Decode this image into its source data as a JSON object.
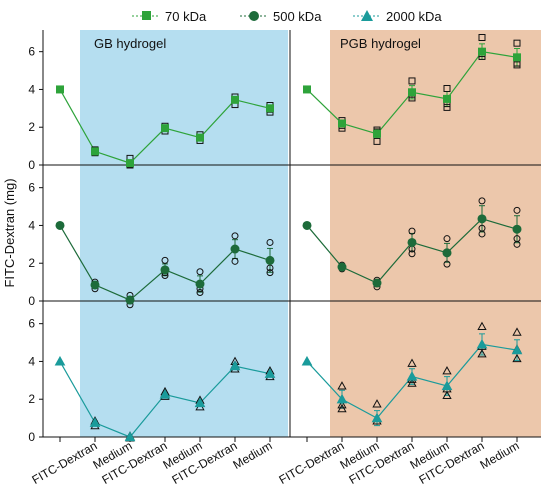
{
  "chart_data": {
    "type": "line",
    "ylabel": "FITC-Dextran (mg)",
    "legend": {
      "placement": "top-center",
      "entries": [
        {
          "label": "70 kDa",
          "marker": "square"
        },
        {
          "label": "500 kDa",
          "marker": "circle"
        },
        {
          "label": "2000 kDa",
          "marker": "triangle"
        }
      ]
    },
    "groups": [
      {
        "label": "GB hydrogel",
        "color": "#b5def0"
      },
      {
        "label": "PGB hydrogel",
        "color": "#ecc7ab"
      }
    ],
    "x_tick_labels": [
      "",
      "FITC-Dextran",
      "Medium",
      "FITC-Dextran",
      "Medium",
      "FITC-Dextran",
      "Medium"
    ],
    "ylim": [
      0,
      7.2
    ],
    "yticks": [
      0,
      2,
      4,
      6
    ],
    "grid": false,
    "panels": [
      {
        "name": "70 kDa",
        "marker": "square",
        "color": "#2ea33a",
        "series": [
          {
            "name": "70 kDa",
            "group": "GB hydrogel",
            "mean": [
              4.0,
              0.72,
              0.1,
              1.95,
              1.45,
              3.45,
              3.0
            ],
            "replicates": [
              [
                4.0
              ],
              [
                0.65,
                0.75,
                0.8
              ],
              [
                0.0,
                0.05,
                0.35
              ],
              [
                1.8,
                1.95,
                2.05
              ],
              [
                1.3,
                1.45,
                1.6
              ],
              [
                3.2,
                3.45,
                3.6
              ],
              [
                2.8,
                2.95,
                3.15
              ]
            ]
          },
          {
            "name": "70 kDa",
            "group": "PGB hydrogel",
            "mean": [
              4.0,
              2.2,
              1.65,
              3.85,
              3.5,
              6.0,
              5.7
            ],
            "replicates": [
              [
                4.0
              ],
              [
                1.95,
                2.1,
                2.35
              ],
              [
                1.25,
                1.75,
                1.85
              ],
              [
                3.55,
                3.75,
                4.45
              ],
              [
                3.05,
                3.25,
                4.05
              ],
              [
                5.75,
                5.9,
                6.75
              ],
              [
                5.3,
                5.4,
                6.45
              ]
            ]
          }
        ]
      },
      {
        "name": "500 kDa",
        "marker": "circle",
        "color": "#1d6b3a",
        "series": [
          {
            "name": "500 kDa",
            "group": "GB hydrogel",
            "mean": [
              4.0,
              0.85,
              0.05,
              1.65,
              0.9,
              2.75,
              2.15
            ],
            "replicates": [
              [
                4.0
              ],
              [
                0.65,
                0.8,
                1.0
              ],
              [
                -0.2,
                0.0,
                0.3
              ],
              [
                1.35,
                1.5,
                2.15
              ],
              [
                0.45,
                0.65,
                1.55
              ],
              [
                2.1,
                2.75,
                3.45
              ],
              [
                1.5,
                1.75,
                3.1
              ]
            ]
          },
          {
            "name": "500 kDa",
            "group": "PGB hydrogel",
            "mean": [
              4.0,
              1.8,
              0.95,
              3.1,
              2.55,
              4.35,
              3.8
            ],
            "replicates": [
              [
                4.0
              ],
              [
                1.7,
                1.8,
                1.9
              ],
              [
                0.75,
                0.95,
                1.1
              ],
              [
                2.5,
                2.75,
                3.7
              ],
              [
                1.95,
                2.6,
                3.3
              ],
              [
                3.55,
                3.85,
                5.3
              ],
              [
                3.0,
                3.3,
                4.8
              ]
            ]
          }
        ]
      },
      {
        "name": "2000 kDa",
        "marker": "triangle",
        "color": "#1a9b9b",
        "series": [
          {
            "name": "2000 kDa",
            "group": "GB hydrogel",
            "mean": [
              4.0,
              0.75,
              0.0,
              2.25,
              1.8,
              3.75,
              3.35
            ],
            "replicates": [
              [
                4.0
              ],
              [
                0.6,
                0.75,
                0.85
              ],
              [
                -0.05,
                0.0,
                0.05
              ],
              [
                2.15,
                2.3,
                2.4
              ],
              [
                1.6,
                1.8,
                1.95
              ],
              [
                3.6,
                3.8,
                4.0
              ],
              [
                3.2,
                3.35,
                3.5
              ]
            ]
          },
          {
            "name": "2000 kDa",
            "group": "PGB hydrogel",
            "mean": [
              4.0,
              2.0,
              1.0,
              3.2,
              2.7,
              4.9,
              4.6
            ],
            "replicates": [
              [
                4.0
              ],
              [
                1.5,
                1.7,
                2.7
              ],
              [
                0.85,
                1.0,
                1.75
              ],
              [
                2.85,
                3.05,
                3.9
              ],
              [
                2.2,
                2.55,
                3.5
              ],
              [
                4.4,
                4.8,
                5.85
              ],
              [
                4.15,
                4.65,
                5.55
              ]
            ]
          }
        ]
      }
    ]
  }
}
